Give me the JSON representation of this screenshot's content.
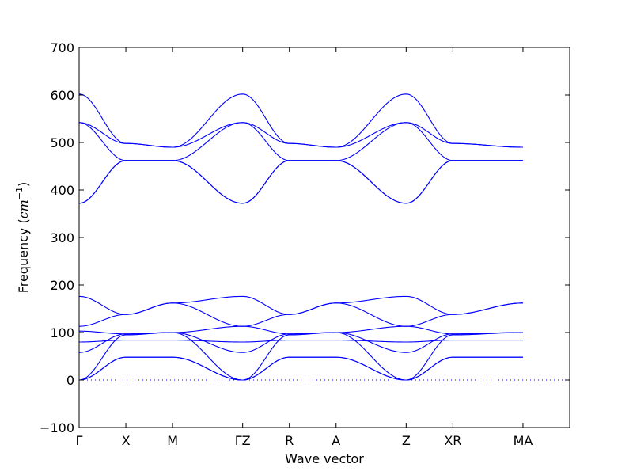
{
  "chart_data": {
    "type": "line",
    "title": "",
    "xlabel": "Wave vector",
    "ylabel": "Frequency (cm⁻¹)",
    "ylabel_parts": {
      "text": "Frequency (",
      "math": "cm",
      "sup": "−1",
      "close": ")"
    },
    "ylim": [
      -100,
      700
    ],
    "yticks": [
      -100,
      0,
      100,
      200,
      300,
      400,
      500,
      600,
      700
    ],
    "grid": false,
    "legend": "none",
    "line_color": "#0000ff",
    "zero_line": true,
    "xlim": [
      0,
      10.5
    ],
    "xticks": [
      {
        "label": "Γ",
        "pos": 0
      },
      {
        "label": "X",
        "pos": 1
      },
      {
        "label": "M",
        "pos": 2
      },
      {
        "label": "ΓZ",
        "pos": 3.5
      },
      {
        "label": "R",
        "pos": 4.5
      },
      {
        "label": "A",
        "pos": 5.5
      },
      {
        "label": "Z",
        "pos": 7
      },
      {
        "label": "XR",
        "pos": 8
      },
      {
        "label": "MA",
        "pos": 9.5
      }
    ],
    "kpath": [
      0,
      1,
      2,
      3.5,
      4.5,
      5.5,
      7,
      8,
      9.5
    ],
    "segment_boundaries": [
      0,
      1,
      2,
      3.5,
      3.5,
      4.5,
      5.5,
      7,
      8,
      8,
      9.5,
      9.5
    ],
    "series": [
      {
        "values": [
          0,
          48,
          48,
          0,
          48,
          48,
          0,
          48,
          48
        ]
      },
      {
        "values": [
          0,
          48,
          48,
          0,
          48,
          48,
          0,
          48,
          48
        ]
      },
      {
        "values": [
          0,
          95,
          100,
          0,
          95,
          100,
          0,
          95,
          100
        ]
      },
      {
        "values": [
          58,
          97,
          100,
          58,
          97,
          100,
          58,
          97,
          100
        ]
      },
      {
        "values": [
          80,
          84,
          84,
          80,
          84,
          84,
          80,
          84,
          84
        ]
      },
      {
        "values": [
          103,
          97,
          100,
          113,
          97,
          100,
          113,
          97,
          100
        ]
      },
      {
        "values": [
          113,
          138,
          162,
          113,
          138,
          162,
          113,
          138,
          162
        ]
      },
      {
        "values": [
          176,
          138,
          162,
          176,
          138,
          162,
          176,
          138,
          162
        ]
      },
      {
        "values": [
          372,
          462,
          462,
          372,
          462,
          462,
          372,
          462,
          462
        ]
      },
      {
        "values": [
          372,
          462,
          462,
          372,
          462,
          462,
          372,
          462,
          462
        ]
      },
      {
        "values": [
          542,
          462,
          462,
          542,
          462,
          462,
          542,
          462,
          462
        ]
      },
      {
        "values": [
          542,
          498,
          490,
          542,
          498,
          490,
          542,
          498,
          490
        ]
      },
      {
        "values": [
          602,
          498,
          490,
          602,
          498,
          490,
          602,
          498,
          490
        ]
      }
    ]
  }
}
